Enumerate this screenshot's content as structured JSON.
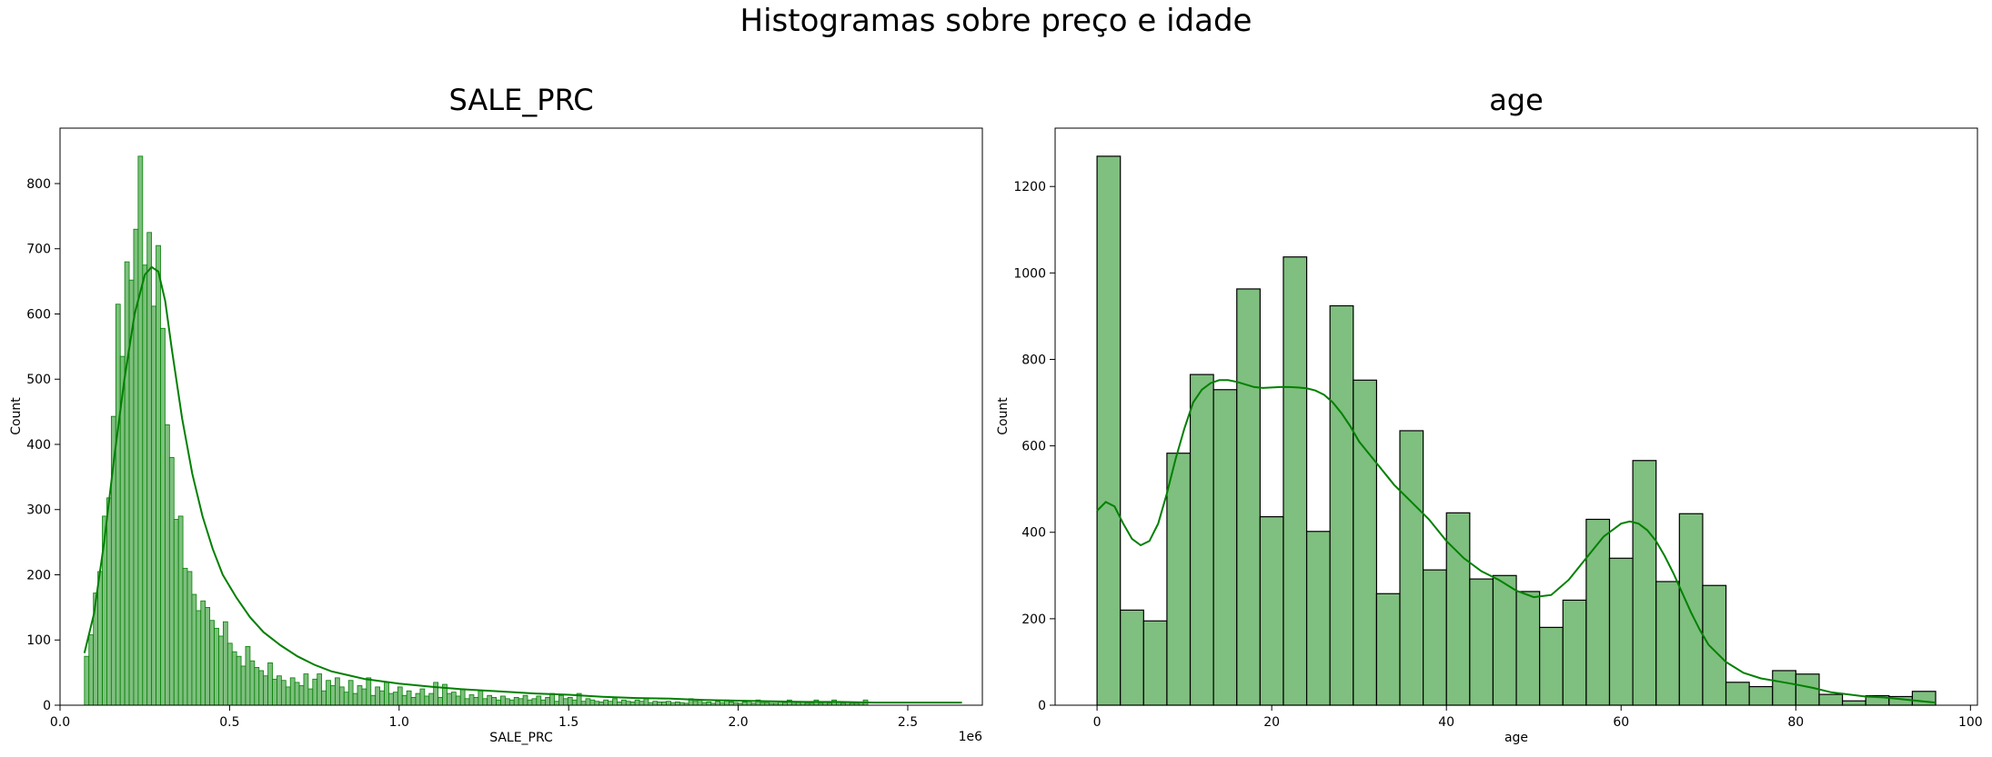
{
  "figure": {
    "title": "Histogramas sobre preço e idade"
  },
  "colors": {
    "bar_fill": "#7fbf7f",
    "bar_edge_light": "#008000",
    "bar_edge_dark": "#000000",
    "kde": "#008000"
  },
  "chart_data": [
    {
      "type": "bar",
      "subtype": "histogram",
      "title": "SALE_PRC",
      "xlabel": "SALE_PRC",
      "ylabel": "Count",
      "offset_label": "1e6",
      "xlim": [
        0.0,
        2.72
      ],
      "ylim": [
        0,
        885
      ],
      "xticks": [
        0.0,
        0.5,
        1.0,
        1.5,
        2.0,
        2.5
      ],
      "xtick_labels": [
        "0.0",
        "0.5",
        "1.0",
        "1.5",
        "2.0",
        "2.5"
      ],
      "yticks": [
        0,
        100,
        200,
        300,
        400,
        500,
        600,
        700,
        800
      ],
      "ytick_labels": [
        "0",
        "100",
        "200",
        "300",
        "400",
        "500",
        "600",
        "700",
        "800"
      ],
      "bin_start": 0.072,
      "bin_width": 0.0132,
      "counts": [
        75,
        108,
        172,
        205,
        290,
        318,
        443,
        615,
        535,
        680,
        652,
        730,
        842,
        675,
        725,
        612,
        705,
        578,
        430,
        380,
        285,
        290,
        210,
        205,
        170,
        145,
        160,
        150,
        130,
        118,
        106,
        128,
        95,
        82,
        75,
        60,
        90,
        68,
        58,
        53,
        45,
        65,
        40,
        45,
        38,
        28,
        42,
        35,
        30,
        48,
        25,
        40,
        48,
        22,
        38,
        30,
        42,
        28,
        20,
        38,
        18,
        30,
        25,
        42,
        15,
        28,
        22,
        35,
        18,
        20,
        28,
        15,
        22,
        12,
        18,
        25,
        14,
        18,
        35,
        12,
        32,
        18,
        20,
        14,
        25,
        10,
        16,
        12,
        22,
        10,
        15,
        12,
        8,
        14,
        10,
        8,
        12,
        10,
        15,
        8,
        10,
        14,
        8,
        12,
        18,
        6,
        15,
        10,
        12,
        8,
        18,
        6,
        10,
        8,
        6,
        5,
        8,
        6,
        10,
        5,
        8,
        6,
        5,
        8,
        6,
        10,
        4,
        6,
        5,
        5,
        6,
        4,
        5,
        4,
        3,
        10,
        6,
        8,
        4,
        5,
        3,
        6,
        4,
        8,
        5,
        4,
        3,
        5,
        6,
        3,
        8,
        4,
        4,
        3,
        3,
        5,
        4,
        8,
        3,
        4,
        5,
        3,
        3,
        8,
        3,
        4,
        3,
        8,
        4,
        3,
        5,
        3,
        3,
        4,
        8
      ],
      "kde": {
        "x": [
          0.072,
          0.1,
          0.13,
          0.16,
          0.19,
          0.22,
          0.25,
          0.27,
          0.29,
          0.31,
          0.33,
          0.36,
          0.39,
          0.42,
          0.45,
          0.48,
          0.52,
          0.56,
          0.6,
          0.65,
          0.7,
          0.75,
          0.8,
          0.9,
          1.0,
          1.1,
          1.2,
          1.3,
          1.4,
          1.5,
          1.6,
          1.7,
          1.8,
          1.9,
          2.0,
          2.1,
          2.2,
          2.3,
          2.4,
          2.5,
          2.6,
          2.66
        ],
        "y": [
          80,
          140,
          250,
          380,
          500,
          600,
          660,
          672,
          665,
          620,
          545,
          440,
          355,
          290,
          240,
          200,
          165,
          135,
          112,
          92,
          75,
          62,
          52,
          40,
          33,
          28,
          24,
          21,
          18,
          16,
          13,
          11,
          10,
          8,
          7,
          6,
          5,
          5,
          4,
          4,
          4,
          4
        ]
      }
    },
    {
      "type": "bar",
      "subtype": "histogram",
      "title": "age",
      "xlabel": "age",
      "ylabel": "Count",
      "xlim": [
        -4.8,
        100.8
      ],
      "ylim": [
        0,
        1335
      ],
      "xticks": [
        0,
        20,
        40,
        60,
        80,
        100
      ],
      "xtick_labels": [
        "0",
        "20",
        "40",
        "60",
        "80",
        "100"
      ],
      "yticks": [
        0,
        200,
        400,
        600,
        800,
        1000,
        1200
      ],
      "ytick_labels": [
        "0",
        "200",
        "400",
        "600",
        "800",
        "1000",
        "1200"
      ],
      "bin_start": 0,
      "bin_width": 2.667,
      "counts": [
        1270,
        220,
        195,
        583,
        765,
        730,
        963,
        436,
        1037,
        402,
        924,
        752,
        258,
        635,
        313,
        445,
        292,
        300,
        263,
        180,
        243,
        430,
        340,
        566,
        286,
        443,
        277,
        53,
        43,
        80,
        72,
        25,
        10,
        22,
        20,
        32
      ],
      "kde": {
        "x": [
          0,
          1,
          2,
          3,
          4,
          5,
          6,
          7,
          8,
          9,
          10,
          11,
          12,
          13,
          14,
          15,
          16,
          17,
          18,
          19,
          20,
          21,
          22,
          23,
          24,
          25,
          26,
          27,
          28,
          29,
          30,
          32,
          34,
          36,
          38,
          40,
          42,
          44,
          46,
          48,
          50,
          52,
          54,
          56,
          58,
          60,
          61,
          62,
          63,
          64,
          65,
          66,
          67,
          68,
          69,
          70,
          72,
          74,
          76,
          78,
          80,
          82,
          84,
          86,
          88,
          90,
          92,
          94,
          96
        ],
        "y": [
          450,
          470,
          460,
          420,
          385,
          370,
          380,
          420,
          490,
          570,
          640,
          700,
          730,
          745,
          752,
          752,
          748,
          742,
          736,
          734,
          735,
          736,
          736,
          735,
          733,
          728,
          718,
          700,
          675,
          645,
          610,
          560,
          510,
          470,
          430,
          380,
          340,
          310,
          290,
          265,
          250,
          255,
          290,
          340,
          390,
          420,
          425,
          420,
          405,
          380,
          345,
          305,
          260,
          215,
          175,
          140,
          100,
          75,
          62,
          55,
          48,
          40,
          30,
          25,
          20,
          18,
          14,
          10,
          6
        ]
      }
    }
  ]
}
